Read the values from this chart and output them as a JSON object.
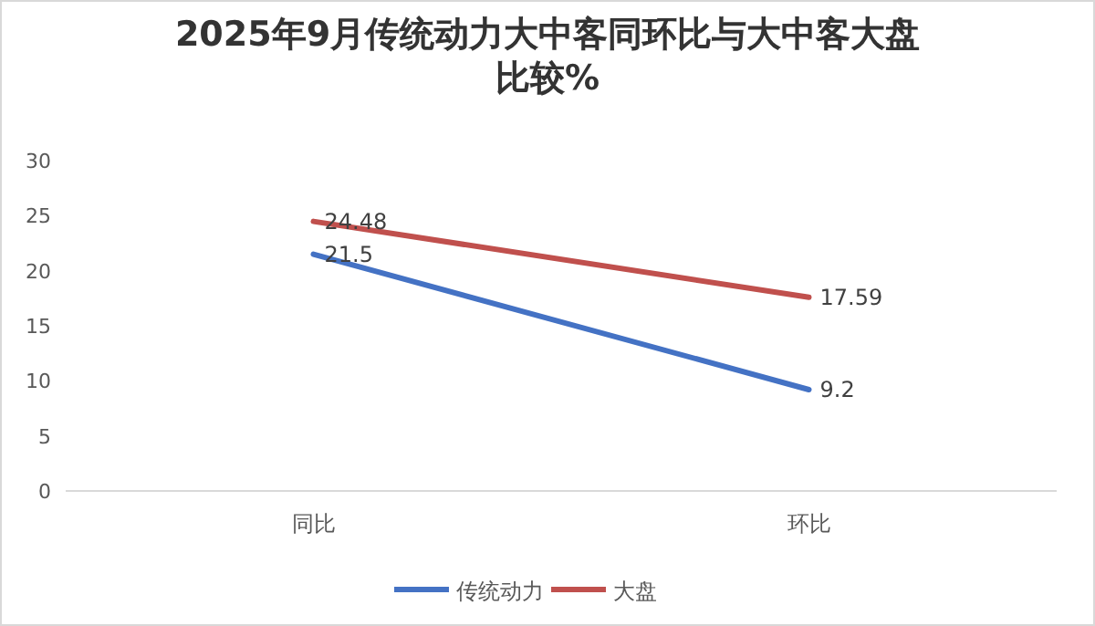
{
  "chart_data": {
    "type": "line",
    "title": "2025年9月传统动力大中客同环比与大中客大盘比较%",
    "categories": [
      "同比",
      "环比"
    ],
    "series": [
      {
        "name": "传统动力",
        "color": "#4472c4",
        "values": [
          21.5,
          9.2
        ]
      },
      {
        "name": "大盘",
        "color": "#c0504d",
        "values": [
          24.48,
          17.59
        ]
      }
    ],
    "ylim": [
      0,
      30
    ],
    "yticks": [
      0,
      5,
      10,
      15,
      20,
      25,
      30
    ],
    "data_labels": true,
    "legend": "bottom",
    "grid": false,
    "marker": "none",
    "line_style": "solid"
  }
}
